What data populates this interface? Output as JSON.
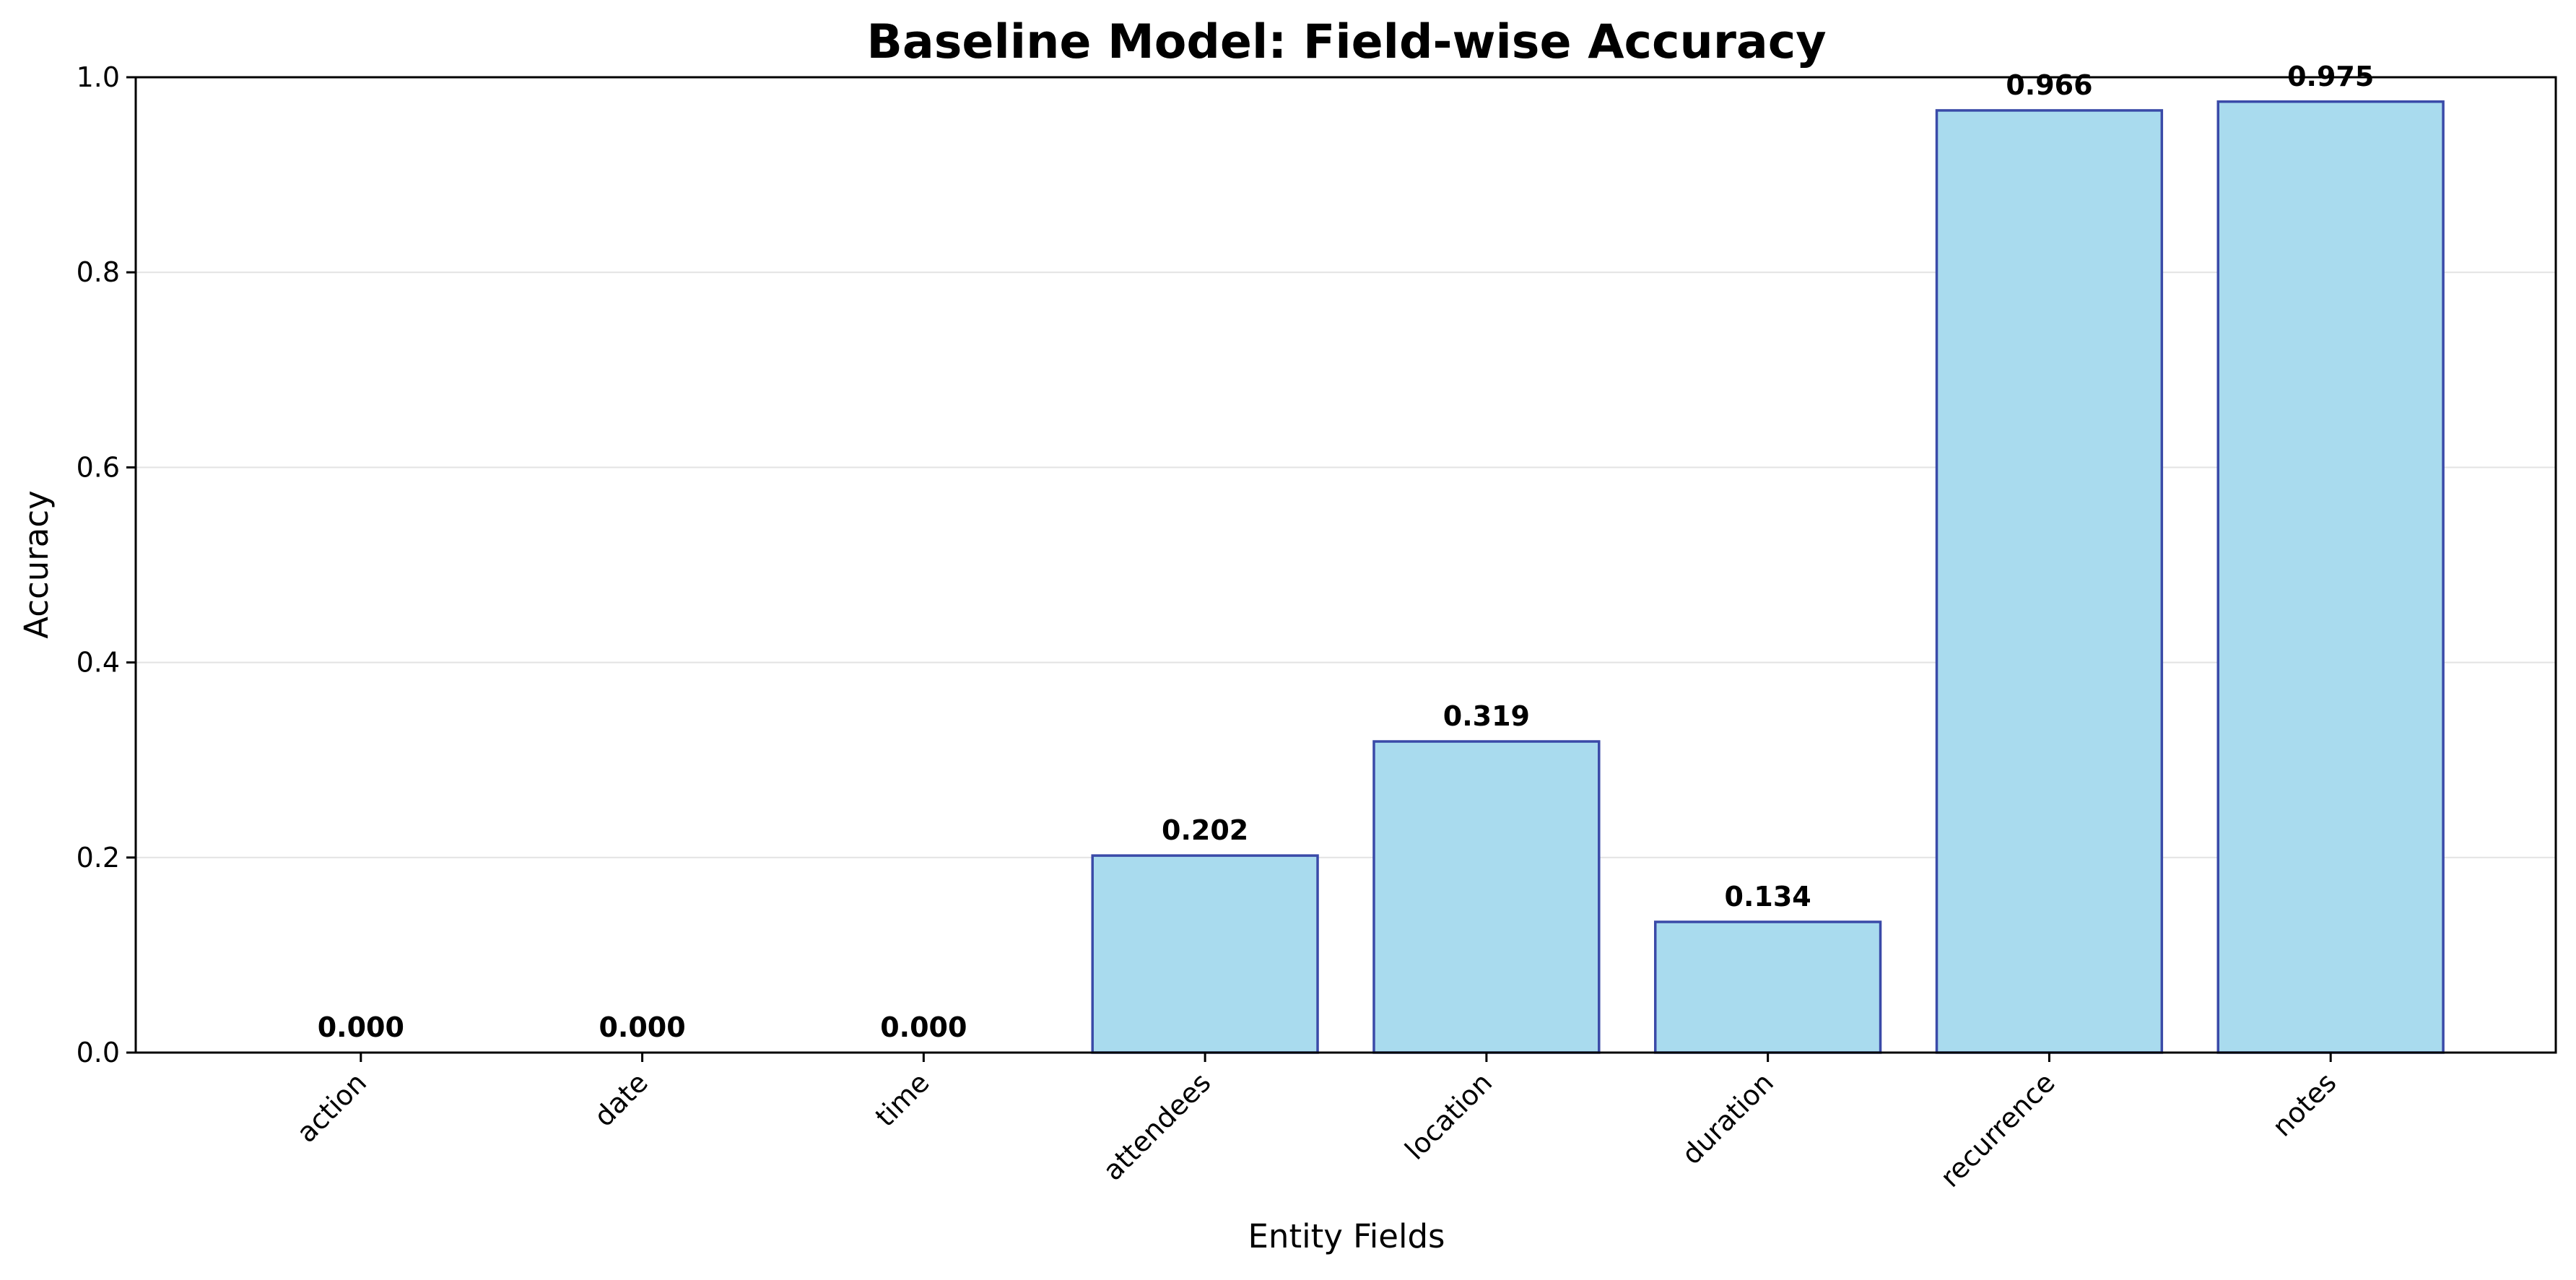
{
  "chart_data": {
    "type": "bar",
    "title": "Baseline Model: Field-wise Accuracy",
    "xlabel": "Entity Fields",
    "ylabel": "Accuracy",
    "categories": [
      "action",
      "date",
      "time",
      "attendees",
      "location",
      "duration",
      "recurrence",
      "notes"
    ],
    "values": [
      0.0,
      0.0,
      0.0,
      0.202,
      0.319,
      0.134,
      0.966,
      0.975
    ],
    "value_labels": [
      "0.000",
      "0.000",
      "0.000",
      "0.202",
      "0.319",
      "0.134",
      "0.966",
      "0.975"
    ],
    "ylim": [
      0,
      1.0
    ],
    "yticks": [
      0.0,
      0.2,
      0.4,
      0.6,
      0.8,
      1.0
    ],
    "ytick_labels": [
      "0.0",
      "0.2",
      "0.4",
      "0.6",
      "0.8",
      "1.0"
    ],
    "grid": "y-axis, light gray",
    "legend": "none",
    "colors": {
      "bar_fill": "#a9dbee",
      "bar_edge": "#3a4aa8",
      "grid": "#e3e3e3",
      "axis": "#000000"
    }
  }
}
